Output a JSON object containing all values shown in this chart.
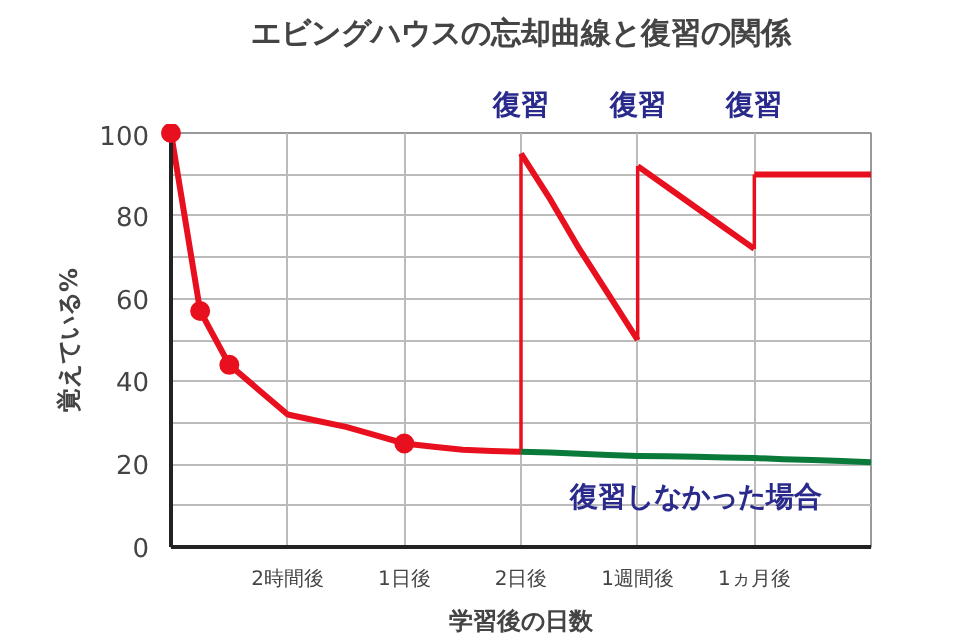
{
  "chart_data": {
    "type": "line",
    "title": "エビングハウスの忘却曲線と復習の関係",
    "xlabel": "学習後の日数",
    "ylabel": "覚えている%",
    "categories": [
      null,
      null,
      null,
      null,
      "2時間後",
      null,
      null,
      null,
      "1日後",
      null,
      null,
      null,
      "2日後",
      null,
      null,
      null,
      "1週間後",
      null,
      null,
      null,
      "1ヵ月後",
      null,
      null,
      null,
      null
    ],
    "ylim": [
      0,
      100
    ],
    "yticks": [
      0,
      {
        "value": 10,
        "label": null
      },
      20,
      {
        "value": 30,
        "label": null
      },
      40,
      {
        "value": 50,
        "label": null
      },
      60,
      {
        "value": 70,
        "label": null
      },
      80,
      {
        "value": 90,
        "label": null
      },
      100
    ],
    "grid": true,
    "series": [
      {
        "color": "#e8101e",
        "values": [
          100,
          57,
          44,
          38,
          32,
          30.5,
          29,
          27,
          25,
          24.2,
          23.5,
          23.2,
          23,
          null,
          null,
          null,
          null,
          null,
          null,
          null,
          null,
          null,
          null,
          null,
          null
        ]
      },
      {
        "color": "#e8101e",
        "values": [
          null,
          null,
          null,
          null,
          null,
          null,
          null,
          null,
          null,
          null,
          null,
          null,
          95,
          84,
          72,
          61,
          50,
          null,
          null,
          null,
          null,
          null,
          null,
          null,
          null
        ]
      },
      {
        "color": "#e8101e",
        "values": [
          null,
          null,
          null,
          null,
          null,
          null,
          null,
          null,
          null,
          null,
          null,
          null,
          null,
          null,
          null,
          null,
          92,
          87,
          82,
          77,
          72,
          null,
          null,
          null,
          null
        ]
      },
      {
        "color": "#e8101e",
        "values": [
          null,
          null,
          null,
          null,
          null,
          null,
          null,
          null,
          null,
          null,
          null,
          null,
          null,
          null,
          null,
          null,
          null,
          null,
          null,
          null,
          90,
          90,
          90,
          90,
          90
        ]
      },
      {
        "type": "bar",
        "color": "#e8101e",
        "values": [
          null,
          null,
          null,
          null,
          null,
          null,
          null,
          null,
          null,
          null,
          null,
          null,
          72,
          null,
          null,
          null,
          42,
          null,
          null,
          null,
          18,
          null,
          null,
          null,
          null
        ],
        "base": [
          null,
          null,
          null,
          null,
          null,
          null,
          null,
          null,
          null,
          null,
          null,
          null,
          23,
          null,
          null,
          null,
          50,
          null,
          null,
          null,
          72,
          null,
          null,
          null,
          null
        ]
      },
      {
        "type": "scatter",
        "color": "#e8101e",
        "marker": "circle",
        "values": [
          100,
          57,
          44,
          null,
          null,
          null,
          null,
          null,
          25,
          null,
          null,
          null,
          null,
          null,
          null,
          null,
          null,
          null,
          null,
          null,
          null,
          null,
          null,
          null,
          null
        ]
      },
      {
        "name": "復習しなかった場合",
        "color": "#0a7a3a",
        "values": [
          null,
          null,
          null,
          null,
          null,
          null,
          null,
          null,
          null,
          null,
          null,
          null,
          23,
          22.8,
          22.5,
          22.2,
          22,
          21.9,
          21.8,
          21.6,
          21.5,
          21.2,
          21,
          20.8,
          20.5
        ]
      }
    ],
    "annotations": [
      "復習",
      "復習",
      "復習"
    ]
  }
}
